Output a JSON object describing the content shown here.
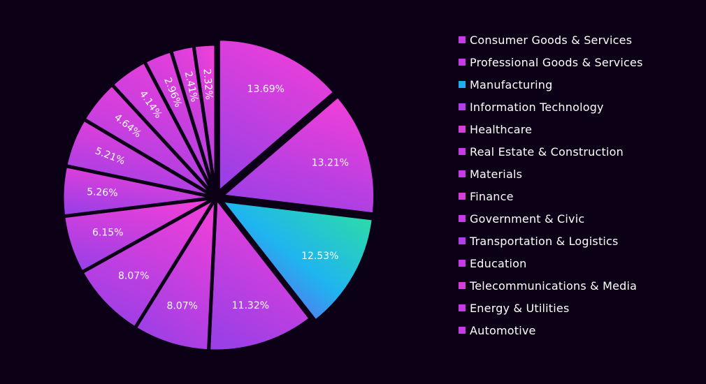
{
  "chart_data": {
    "type": "pie",
    "categories": [
      "Consumer Goods & Services",
      "Professional Goods & Services",
      "Manufacturing",
      "Information Technology",
      "Healthcare",
      "Real Estate & Construction",
      "Materials",
      "Finance",
      "Government & Civic",
      "Transportation & Logistics",
      "Education",
      "Telecommunications & Media",
      "Energy & Utilities",
      "Automotive"
    ],
    "values": [
      13.69,
      13.21,
      12.53,
      11.32,
      8.07,
      8.07,
      6.15,
      5.26,
      5.21,
      4.64,
      4.14,
      2.96,
      2.41,
      2.32
    ],
    "labels": [
      "13.69%",
      "13.21%",
      "12.53%",
      "11.32%",
      "8.07%",
      "8.07%",
      "6.15%",
      "5.26%",
      "5.21%",
      "4.64%",
      "4.14%",
      "2.96%",
      "2.41%",
      "2.32%"
    ],
    "gradients": [
      [
        "#f03fd8",
        "#9b3fe6"
      ],
      [
        "#f03fd8",
        "#9b3fe6"
      ],
      [
        "#2fe39a",
        "#1fb4f0",
        "#8a3fe8"
      ],
      [
        "#f03fd8",
        "#9b3fe6"
      ],
      [
        "#f03fd8",
        "#9b3fe6"
      ],
      [
        "#f03fd8",
        "#9b3fe6"
      ],
      [
        "#f03fd8",
        "#9b3fe6"
      ],
      [
        "#f03fd8",
        "#9b3fe6"
      ],
      [
        "#f03fd8",
        "#9b3fe6"
      ],
      [
        "#f03fd8",
        "#9b3fe6"
      ],
      [
        "#f03fd8",
        "#9b3fe6"
      ],
      [
        "#f03fd8",
        "#9b3fe6"
      ],
      [
        "#f03fd8",
        "#9b3fe6"
      ],
      [
        "#f03fd8",
        "#9b3fe6"
      ]
    ],
    "legend_colors": [
      "#c13fe0",
      "#c13fe0",
      "#1eaee8",
      "#b03fe4",
      "#d33fd9",
      "#c13fe0",
      "#c13fe0",
      "#d33fd9",
      "#c13fe0",
      "#b03fe4",
      "#c13fe0",
      "#d33fd9",
      "#c13fe0",
      "#c13fe0"
    ],
    "background": "#0c0016",
    "separator_color": "#0c0016",
    "legend_position": "right",
    "start_angle": "top",
    "direction": "clockwise",
    "exploded_slices": [
      0,
      1,
      2
    ]
  }
}
